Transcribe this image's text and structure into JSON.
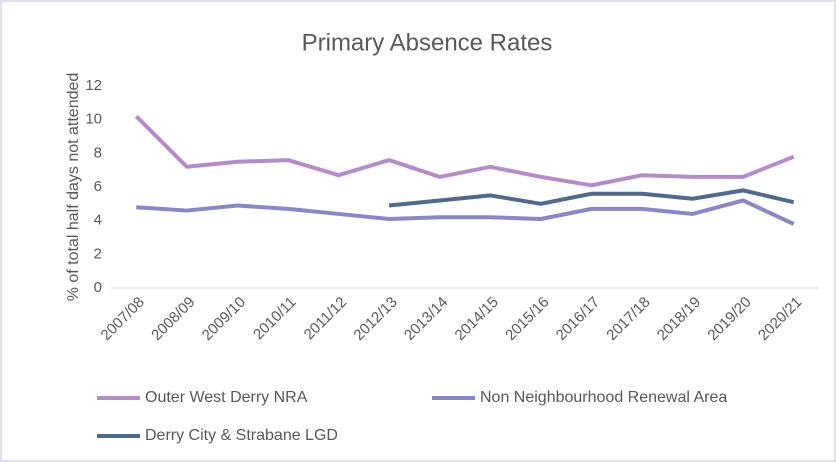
{
  "chart_data": {
    "type": "line",
    "title": "Primary Absence Rates",
    "y_label": "% of total half days not attended",
    "categories": [
      "2007/08",
      "2008/09",
      "2009/10",
      "2010/11",
      "2011/12",
      "2012/13",
      "2013/14",
      "2014/15",
      "2015/16",
      "2016/17",
      "2017/18",
      "2018/19",
      "2019/20",
      "2020/21"
    ],
    "series": [
      {
        "name": "Outer West Derry NRA",
        "color": "#b48cca",
        "values": [
          10.2,
          7.2,
          7.5,
          7.6,
          6.7,
          7.6,
          6.6,
          7.2,
          6.6,
          6.1,
          6.7,
          6.6,
          6.6,
          7.8
        ]
      },
      {
        "name": "Non Neighbourhood Renewal Area",
        "color": "#8a86cc",
        "values": [
          4.8,
          4.6,
          4.9,
          4.7,
          4.4,
          4.1,
          4.2,
          4.2,
          4.1,
          4.7,
          4.7,
          4.4,
          5.2,
          3.8
        ]
      },
      {
        "name": "Derry City & Strabane LGD",
        "color": "#4f6a8c",
        "values": [
          null,
          null,
          null,
          null,
          null,
          4.9,
          5.2,
          5.5,
          5.0,
          5.6,
          5.6,
          5.3,
          5.8,
          5.1
        ]
      }
    ],
    "ylim": [
      0,
      12
    ],
    "yticks": [
      0,
      2,
      4,
      6,
      8,
      10,
      12
    ],
    "grid": false,
    "legend": "bottom"
  }
}
